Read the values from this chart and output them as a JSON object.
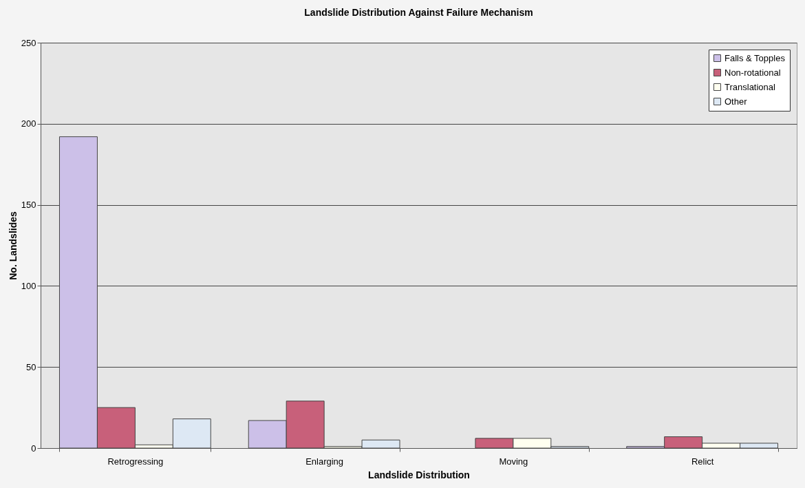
{
  "chart_data": {
    "type": "bar",
    "title": "Landslide Distribution Against Failure Mechanism",
    "xlabel": "Landslide Distribution",
    "ylabel": "No. Landslides",
    "categories": [
      "Retrogressing",
      "Enlarging",
      "Moving",
      "Relict"
    ],
    "series": [
      {
        "name": "Falls & Topples",
        "color": "#ccc0e8",
        "values": [
          192,
          17,
          0,
          1
        ]
      },
      {
        "name": "Non-rotational",
        "color": "#c8607a",
        "values": [
          25,
          29,
          6,
          7
        ]
      },
      {
        "name": "Translational",
        "color": "#fffff0",
        "values": [
          2,
          1,
          6,
          3
        ]
      },
      {
        "name": "Other",
        "color": "#dde8f4",
        "values": [
          18,
          5,
          1,
          3
        ]
      }
    ],
    "ylim": [
      0,
      250
    ],
    "yticks": [
      0,
      50,
      100,
      150,
      200,
      250
    ],
    "grid": "y",
    "legend": "top right"
  }
}
